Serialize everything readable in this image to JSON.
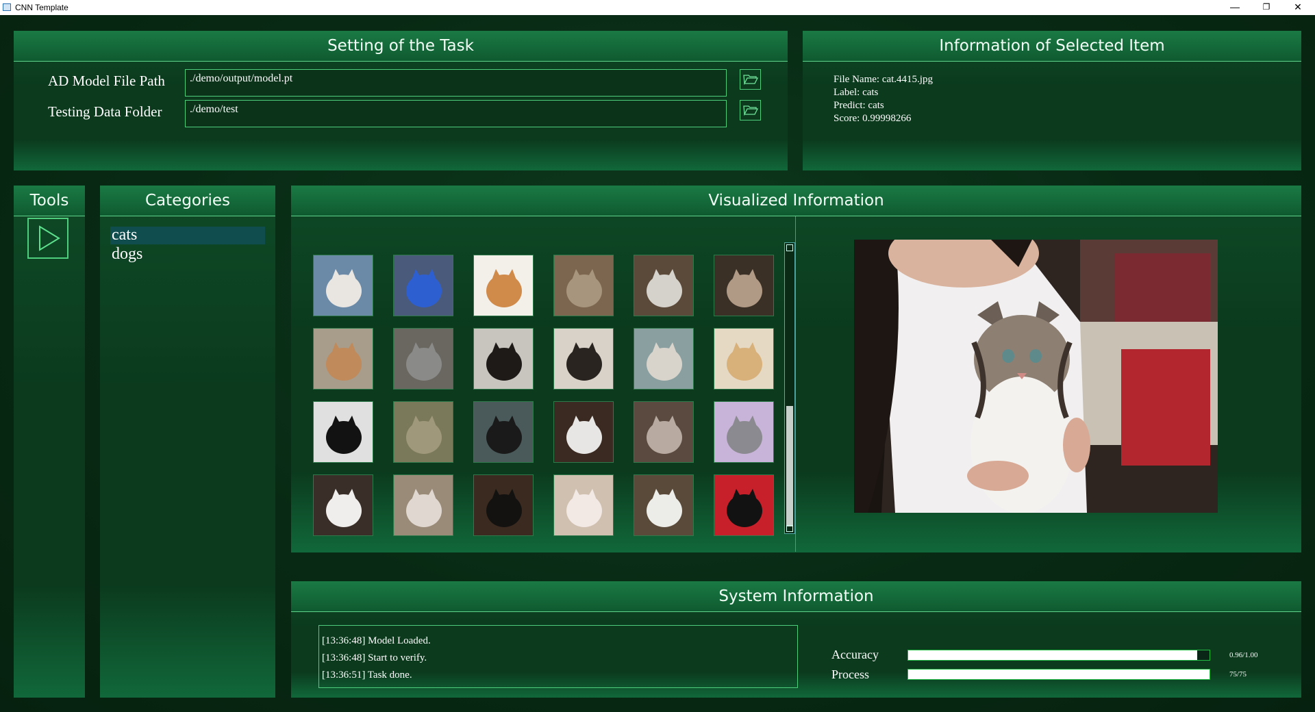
{
  "window": {
    "title": "CNN Template",
    "minimize": "—",
    "maximize": "❐",
    "close": "✕"
  },
  "task_setting": {
    "title": "Setting of the Task",
    "model_label": "AD Model File Path",
    "model_value": "./demo/output/model.pt",
    "data_label": "Testing Data Folder",
    "data_value": "./demo/test"
  },
  "selected_info": {
    "title": "Information of Selected Item",
    "file_name": "File Name: cat.4415.jpg",
    "label": "Label: cats",
    "predict": "Predict: cats",
    "score": "Score: 0.99998266"
  },
  "tools": {
    "title": "Tools"
  },
  "categories": {
    "title": "Categories",
    "items": [
      "cats",
      "dogs"
    ],
    "selected": "cats"
  },
  "visualized": {
    "title": "Visualized Information"
  },
  "system": {
    "title": "System Information",
    "logs": [
      "[13:36:48] Model Loaded.",
      "[13:36:48] Start to verify.",
      "[13:36:51] Task done."
    ],
    "accuracy_label": "Accuracy",
    "accuracy_value": "0.96/1.00",
    "accuracy_fraction": 0.96,
    "process_label": "Process",
    "process_value": "75/75",
    "process_fraction": 1.0
  },
  "colors": {
    "accent": "#4fcf7e",
    "header": "#1a7a44",
    "background": "#0a2a16"
  }
}
